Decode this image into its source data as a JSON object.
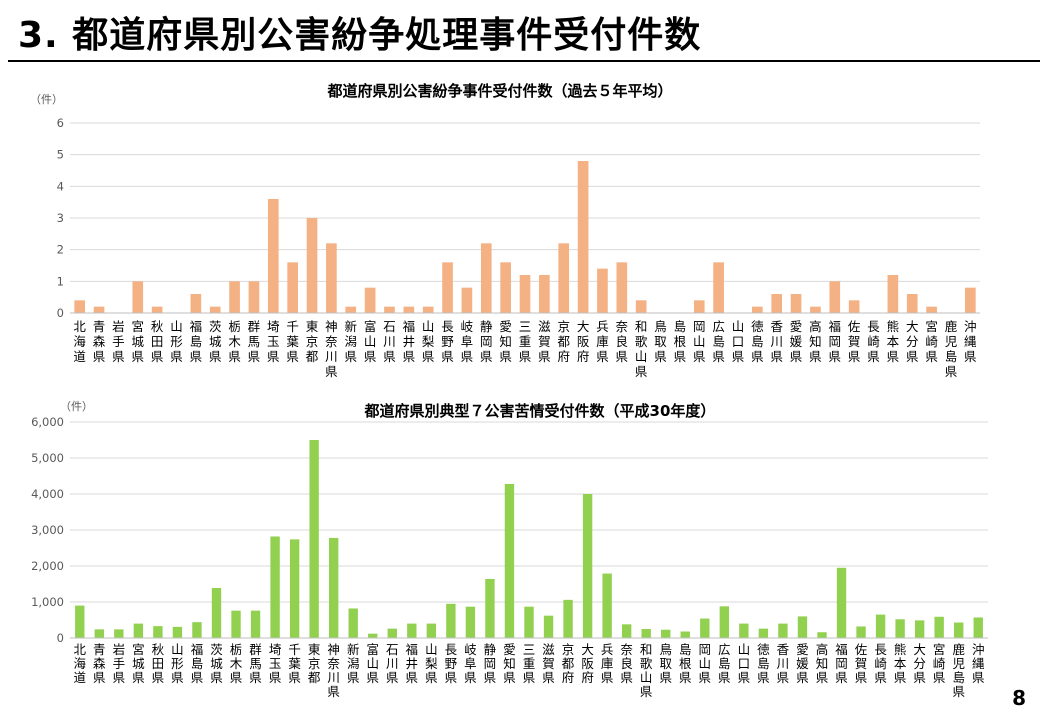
{
  "slide": {
    "title": "3. 都道府県別公害紛争処理事件受付件数",
    "page_number": "8"
  },
  "prefectures": [
    "北海道",
    "青森県",
    "岩手県",
    "宮城県",
    "秋田県",
    "山形県",
    "福島県",
    "茨城県",
    "栃木県",
    "群馬県",
    "埼玉県",
    "千葉県",
    "東京都",
    "神奈川県",
    "新潟県",
    "富山県",
    "石川県",
    "福井県",
    "山梨県",
    "長野県",
    "岐阜県",
    "静岡県",
    "愛知県",
    "三重県",
    "滋賀県",
    "京都府",
    "大阪府",
    "兵庫県",
    "奈良県",
    "和歌山県",
    "鳥取県",
    "島根県",
    "岡山県",
    "広島県",
    "山口県",
    "徳島県",
    "香川県",
    "愛媛県",
    "高知県",
    "福岡県",
    "佐賀県",
    "長崎県",
    "熊本県",
    "大分県",
    "宮崎県",
    "鹿児島県",
    "沖縄県"
  ],
  "chart_data": [
    {
      "type": "bar",
      "title": "都道府県別公害紛争事件受付件数（過去５年平均）",
      "unit_label": "（件）",
      "values": [
        0.4,
        0.2,
        0,
        1.0,
        0.2,
        0,
        0.6,
        0.2,
        1.0,
        1.0,
        3.6,
        1.6,
        3.0,
        2.2,
        0.2,
        0.8,
        0.2,
        0.2,
        0.2,
        1.6,
        0.8,
        2.2,
        1.6,
        1.2,
        1.2,
        2.2,
        4.8,
        1.4,
        1.6,
        0.4,
        0,
        0,
        0.4,
        1.6,
        0,
        0.2,
        0.6,
        0.6,
        0.2,
        1.0,
        0.4,
        0,
        1.2,
        0.6,
        0.2,
        0,
        0.8
      ],
      "ylim": [
        0,
        6
      ],
      "yticks": [
        0,
        1,
        2,
        3,
        4,
        5,
        6
      ],
      "ytick_labels": [
        "0",
        "1",
        "2",
        "3",
        "4",
        "5",
        "6"
      ],
      "color": "#F4B183",
      "grid": true
    },
    {
      "type": "bar",
      "title": "都道府県別典型７公害苦情受付件数（平成30年度）",
      "unit_label": "（件）",
      "values": [
        900,
        240,
        240,
        400,
        330,
        310,
        440,
        1390,
        760,
        760,
        2820,
        2740,
        5500,
        2780,
        820,
        120,
        260,
        400,
        400,
        950,
        870,
        1640,
        4280,
        870,
        620,
        1060,
        4000,
        1790,
        380,
        250,
        230,
        180,
        540,
        880,
        400,
        260,
        400,
        600,
        160,
        1950,
        320,
        650,
        520,
        490,
        590,
        430,
        570
      ],
      "ylim": [
        0,
        6000
      ],
      "yticks": [
        0,
        1000,
        2000,
        3000,
        4000,
        5000,
        6000
      ],
      "ytick_labels": [
        "0",
        "1,000",
        "2,000",
        "3,000",
        "4,000",
        "5,000",
        "6,000"
      ],
      "color": "#92D050",
      "grid": true
    }
  ]
}
